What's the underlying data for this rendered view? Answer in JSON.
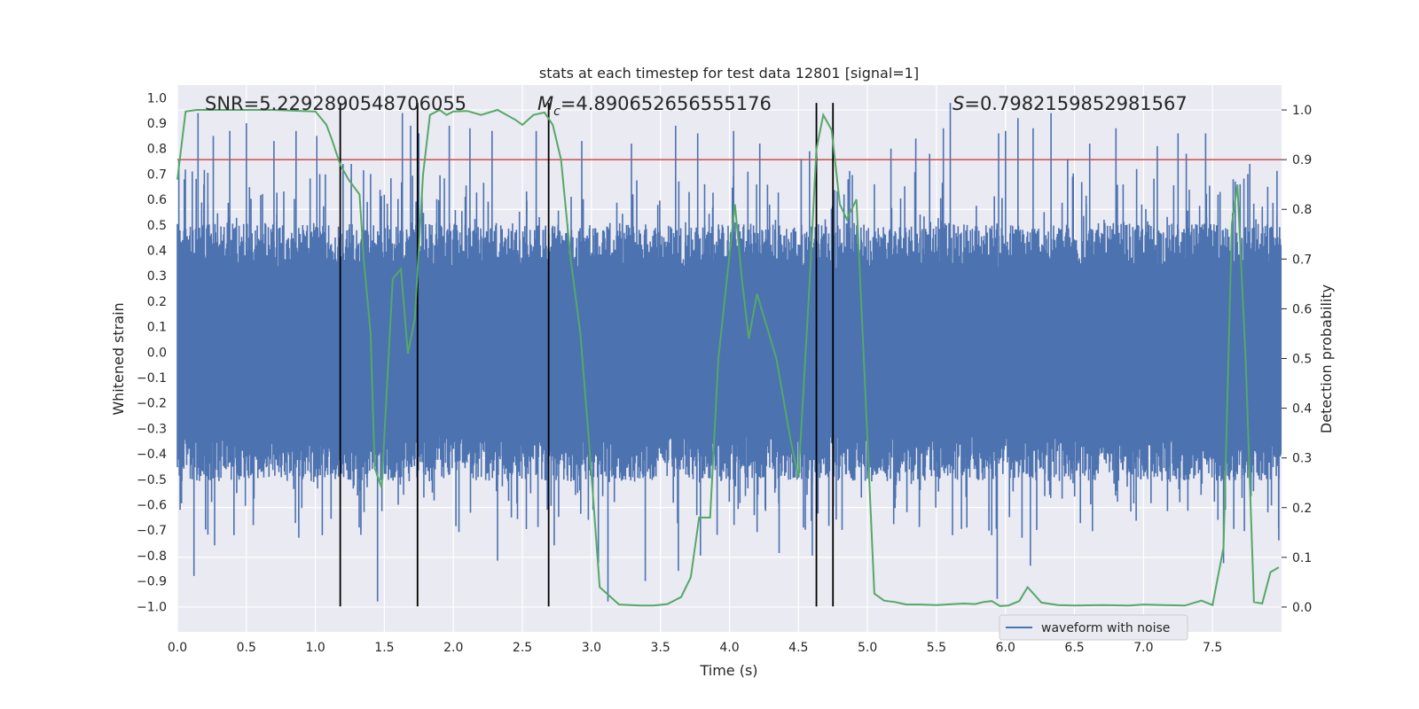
{
  "chart_data": {
    "type": "line",
    "title": "stats at each timestep for test data 12801 [signal=1]",
    "xlabel": "Time (s)",
    "ylabel": "Whitened strain",
    "y2label": "Detection probability",
    "xlim": [
      0.0,
      8.0
    ],
    "ylim": [
      -1.1,
      1.05
    ],
    "y2lim": [
      -0.05,
      1.05
    ],
    "xticks": [
      0.0,
      0.5,
      1.0,
      1.5,
      2.0,
      2.5,
      3.0,
      3.5,
      4.0,
      4.5,
      5.0,
      5.5,
      6.0,
      6.5,
      7.0,
      7.5
    ],
    "xtick_labels": [
      "0.0",
      "0.5",
      "1.0",
      "1.5",
      "2.0",
      "2.5",
      "3.0",
      "3.5",
      "4.0",
      "4.5",
      "5.0",
      "5.5",
      "6.0",
      "6.5",
      "7.0",
      "7.5"
    ],
    "yticks": [
      1.0,
      0.9,
      0.8,
      0.7,
      0.6,
      0.5,
      0.4,
      0.3,
      0.2,
      0.1,
      0.0,
      -0.1,
      -0.2,
      -0.3,
      -0.4,
      -0.5,
      -0.6,
      -0.7,
      -0.8,
      -0.9,
      -1.0
    ],
    "ytick_labels": [
      "1.0",
      "0.9",
      "0.8",
      "0.7",
      "0.6",
      "0.5",
      "0.4",
      "0.3",
      "0.2",
      "0.1",
      "0.0",
      "−0.1",
      "−0.2",
      "−0.3",
      "−0.4",
      "−0.5",
      "−0.6",
      "−0.7",
      "−0.8",
      "−0.9",
      "−1.0"
    ],
    "y2ticks": [
      1.0,
      0.9,
      0.8,
      0.7,
      0.6,
      0.5,
      0.4,
      0.3,
      0.2,
      0.1,
      0.0
    ],
    "y2tick_labels": [
      "1.0",
      "0.9",
      "0.8",
      "0.7",
      "0.6",
      "0.5",
      "0.4",
      "0.3",
      "0.2",
      "0.1",
      "0.0"
    ],
    "grid": true,
    "legend": {
      "placement": "lower-right",
      "entries": [
        "waveform with noise"
      ]
    },
    "stats": {
      "snr_text": "SNR=5.2292890548706055",
      "mc_symbol": "M",
      "mc_sub": "c",
      "mc_value": "=4.890652656555176",
      "s_symbol": "S",
      "s_value": "=0.7982159852981567"
    },
    "colors": {
      "background": "#eaeaf2",
      "waveform": "#4c72b0",
      "probability": "#55a868",
      "threshold": "#c44e52",
      "vlines": "#000000"
    },
    "threshold": 0.9,
    "vlines": [
      1.18,
      1.74,
      2.69,
      4.63,
      4.75
    ],
    "waveform": {
      "name": "waveform with noise",
      "core_amplitude": 0.4,
      "spikes": [
        [
          0.01,
          0.76
        ],
        [
          0.02,
          -0.62
        ],
        [
          0.05,
          0.68
        ],
        [
          0.12,
          -0.88
        ],
        [
          0.15,
          0.94
        ],
        [
          0.26,
          0.85
        ],
        [
          0.27,
          -0.76
        ],
        [
          0.38,
          0.87
        ],
        [
          0.41,
          -0.72
        ],
        [
          0.5,
          0.9
        ],
        [
          0.55,
          -0.68
        ],
        [
          0.7,
          0.83
        ],
        [
          0.88,
          -0.73
        ],
        [
          0.86,
          0.87
        ],
        [
          1.01,
          0.85
        ],
        [
          1.05,
          -0.72
        ],
        [
          1.2,
          0.74
        ],
        [
          1.26,
          0.74
        ],
        [
          1.33,
          -0.7
        ],
        [
          1.4,
          0.7
        ],
        [
          1.45,
          -0.98
        ],
        [
          1.63,
          0.94
        ],
        [
          1.69,
          0.89
        ],
        [
          1.75,
          0.86
        ],
        [
          1.6,
          -0.6
        ],
        [
          1.97,
          0.89
        ],
        [
          2.12,
          0.88
        ],
        [
          2.28,
          0.87
        ],
        [
          2.32,
          -0.82
        ],
        [
          2.42,
          -0.65
        ],
        [
          2.6,
          0.87
        ],
        [
          2.68,
          -0.62
        ],
        [
          2.73,
          -0.76
        ],
        [
          2.93,
          0.83
        ],
        [
          3.05,
          -0.83
        ],
        [
          3.12,
          -0.98
        ],
        [
          3.29,
          0.82
        ],
        [
          3.39,
          -0.9
        ],
        [
          3.61,
          0.89
        ],
        [
          3.63,
          -0.86
        ],
        [
          3.79,
          -0.8
        ],
        [
          3.77,
          0.86
        ],
        [
          3.82,
          0.66
        ],
        [
          4.03,
          0.87
        ],
        [
          4.22,
          0.82
        ],
        [
          4.36,
          -0.79
        ],
        [
          4.52,
          0.76
        ],
        [
          4.58,
          0.79
        ],
        [
          4.6,
          -0.8
        ],
        [
          4.83,
          0.62
        ],
        [
          4.86,
          0.68
        ],
        [
          5.05,
          0.66
        ],
        [
          5.17,
          0.8
        ],
        [
          5.35,
          0.84
        ],
        [
          5.45,
          0.78
        ],
        [
          5.55,
          0.88
        ],
        [
          5.6,
          0.98
        ],
        [
          5.72,
          -0.69
        ],
        [
          5.9,
          -0.72
        ],
        [
          5.94,
          -0.97
        ],
        [
          5.95,
          0.86
        ],
        [
          6.0,
          0.87
        ],
        [
          6.09,
          0.92
        ],
        [
          6.12,
          -0.73
        ],
        [
          6.18,
          -0.84
        ],
        [
          6.2,
          0.88
        ],
        [
          6.33,
          0.94
        ],
        [
          6.45,
          0.76
        ],
        [
          6.61,
          0.82
        ],
        [
          6.8,
          0.88
        ],
        [
          6.95,
          0.72
        ],
        [
          7.1,
          0.81
        ],
        [
          7.25,
          0.86
        ],
        [
          7.31,
          0.78
        ],
        [
          7.45,
          0.86
        ],
        [
          7.58,
          -0.83
        ],
        [
          7.65,
          0.68
        ],
        [
          7.7,
          0.66
        ],
        [
          7.77,
          0.74
        ],
        [
          7.9,
          0.65
        ],
        [
          7.98,
          -0.74
        ]
      ]
    },
    "probability": {
      "x": [
        0.0,
        0.06,
        0.14,
        0.3,
        0.5,
        0.7,
        0.9,
        1.0,
        1.08,
        1.12,
        1.18,
        1.24,
        1.32,
        1.35,
        1.4,
        1.43,
        1.48,
        1.56,
        1.62,
        1.67,
        1.72,
        1.78,
        1.83,
        1.9,
        1.95,
        2.0,
        2.1,
        2.2,
        2.32,
        2.45,
        2.5,
        2.58,
        2.66,
        2.72,
        2.78,
        2.85,
        2.92,
        2.98,
        3.06,
        3.2,
        3.35,
        3.45,
        3.55,
        3.65,
        3.72,
        3.78,
        3.86,
        3.92,
        4.04,
        4.09,
        4.14,
        4.2,
        4.34,
        4.44,
        4.5,
        4.58,
        4.63,
        4.68,
        4.74,
        4.8,
        4.85,
        4.92,
        4.98,
        5.05,
        5.12,
        5.2,
        5.28,
        5.38,
        5.5,
        5.62,
        5.7,
        5.78,
        5.84,
        5.9,
        5.96,
        6.02,
        6.1,
        6.16,
        6.26,
        6.38,
        6.5,
        6.7,
        6.9,
        7.0,
        7.15,
        7.3,
        7.42,
        7.5,
        7.58,
        7.64,
        7.68,
        7.74,
        7.8,
        7.86,
        7.92,
        7.98
      ],
      "y": [
        0.86,
        0.997,
        1.0,
        1.0,
        1.0,
        1.0,
        0.998,
        0.997,
        0.97,
        0.94,
        0.89,
        0.86,
        0.83,
        0.7,
        0.55,
        0.28,
        0.24,
        0.66,
        0.68,
        0.51,
        0.58,
        0.87,
        0.99,
        1.0,
        0.99,
        0.997,
        0.998,
        0.99,
        1.0,
        0.98,
        0.97,
        0.99,
        0.995,
        0.97,
        0.9,
        0.7,
        0.55,
        0.34,
        0.04,
        0.005,
        0.003,
        0.003,
        0.006,
        0.02,
        0.06,
        0.18,
        0.18,
        0.5,
        0.81,
        0.66,
        0.54,
        0.63,
        0.5,
        0.34,
        0.26,
        0.65,
        0.92,
        0.99,
        0.96,
        0.81,
        0.78,
        0.82,
        0.46,
        0.027,
        0.013,
        0.01,
        0.005,
        0.005,
        0.004,
        0.006,
        0.007,
        0.006,
        0.01,
        0.012,
        0.002,
        0.003,
        0.012,
        0.04,
        0.009,
        0.004,
        0.003,
        0.004,
        0.003,
        0.005,
        0.004,
        0.003,
        0.013,
        0.004,
        0.12,
        0.77,
        0.85,
        0.5,
        0.01,
        0.007,
        0.07,
        0.08
      ]
    }
  }
}
